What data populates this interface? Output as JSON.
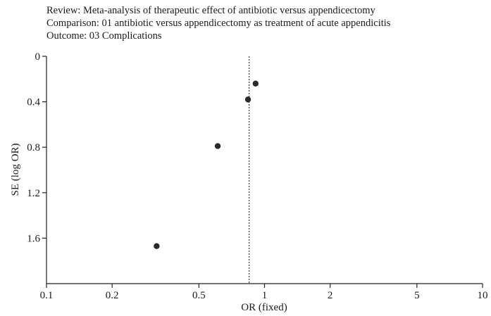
{
  "header": {
    "review": "Review: Meta-analysis of therapeutic effect of antibiotic versus appendicectomy",
    "comparison": "Comparison: 01 antibiotic versus appendicectomy as treatment of acute appendicitis",
    "outcome": "Outcome: 03 Complications"
  },
  "chart_data": {
    "type": "scatter",
    "title": "",
    "xlabel": "OR (fixed)",
    "ylabel": "SE (log OR)",
    "x_scale": "log",
    "xlim": [
      0.1,
      10
    ],
    "ylim": [
      0,
      2.0
    ],
    "y_inverted": true,
    "x_ticks": [
      0.1,
      0.2,
      0.5,
      1,
      2,
      5,
      10
    ],
    "x_tick_labels": [
      "0.1",
      "0.2",
      "0.5",
      "1",
      "2",
      "5",
      "10"
    ],
    "y_ticks": [
      0,
      0.4,
      0.8,
      1.2,
      1.6
    ],
    "y_tick_labels": [
      "0",
      "0.4",
      "0.8",
      "1.2",
      "1.6"
    ],
    "reference_line_x": 0.85,
    "grid": false,
    "series": [
      {
        "points": [
          {
            "x": 0.91,
            "y": 0.24
          },
          {
            "x": 0.84,
            "y": 0.38
          },
          {
            "x": 0.61,
            "y": 0.79
          },
          {
            "x": 0.32,
            "y": 1.67
          }
        ]
      }
    ]
  }
}
